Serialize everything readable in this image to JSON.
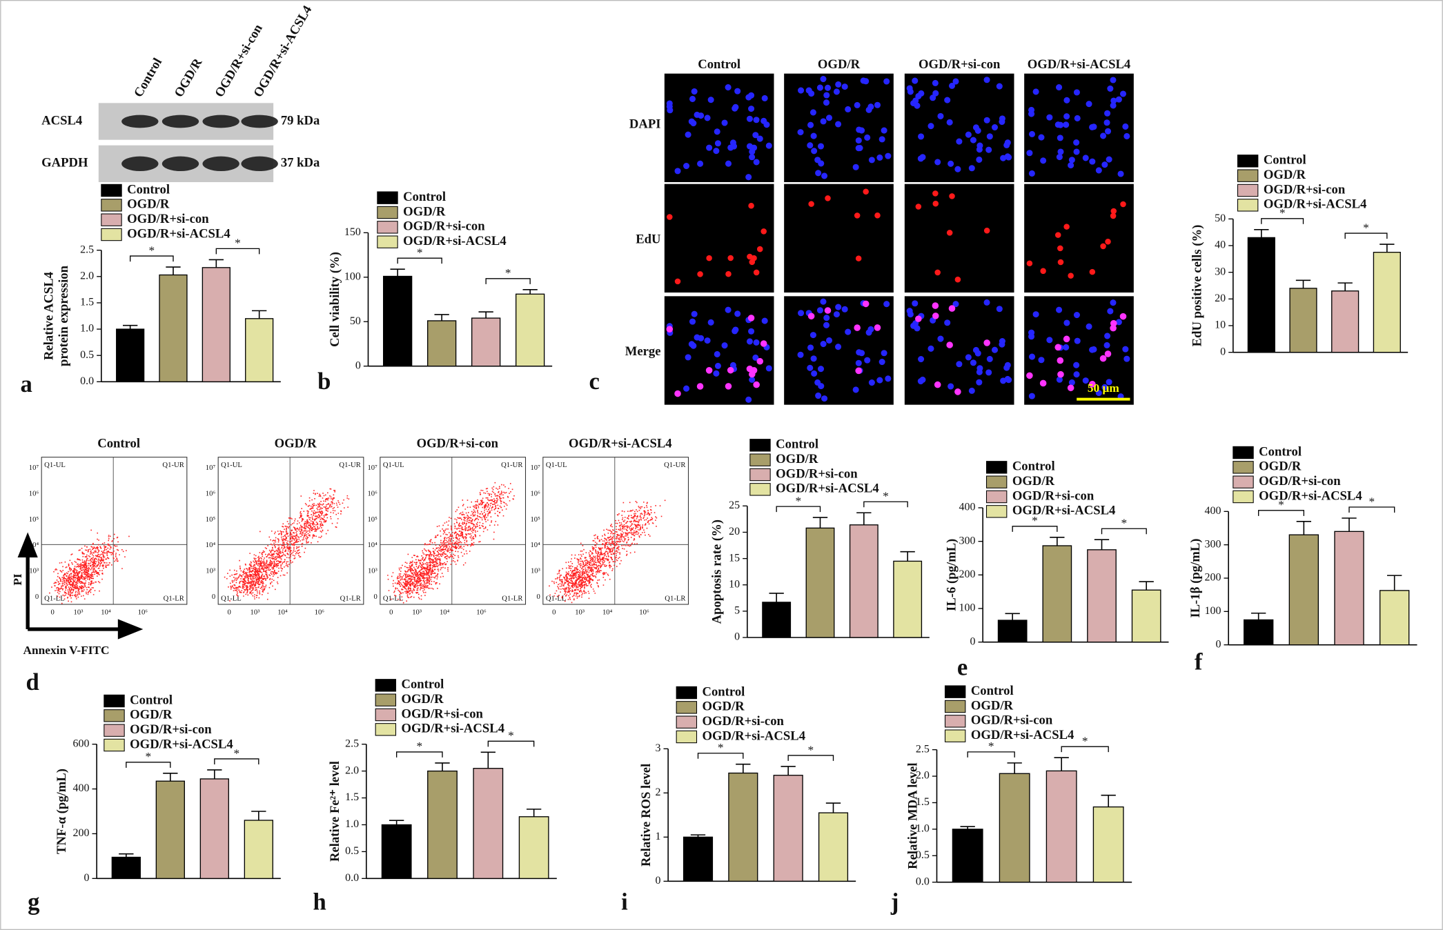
{
  "chart_data": [
    {
      "type": "bar",
      "panel": "a",
      "y_label": [
        "Relative ACSL4",
        "protein expression"
      ],
      "ylim": [
        0,
        2.5
      ],
      "yticks": [
        {
          "value": 0,
          "label": "0.0"
        },
        0.5,
        {
          "value": 1,
          "label": "1.0"
        },
        1.5,
        {
          "value": 2,
          "label": "2.0"
        },
        2.5
      ],
      "series": [
        {
          "name": "Control",
          "color": "#000000",
          "values": [
            1.0
          ],
          "errors": [
            0.07
          ]
        },
        {
          "name": "OGD/R",
          "color": "#a89e6a",
          "values": [
            2.03
          ],
          "errors": [
            0.15
          ]
        },
        {
          "name": "OGD/R+si-con",
          "color": "#d8aeae",
          "values": [
            2.17
          ],
          "errors": [
            0.15
          ]
        },
        {
          "name": "OGD/R+si-ACSL4",
          "color": "#e3e3a2",
          "values": [
            1.2
          ],
          "errors": [
            0.15
          ]
        }
      ],
      "annotations": [
        "*",
        "*"
      ]
    },
    {
      "type": "bar",
      "panel": "b",
      "y_label": [
        "Cell viability (%)"
      ],
      "ylim": [
        0,
        150
      ],
      "yticks": [
        0,
        50,
        100,
        150
      ],
      "series": [
        {
          "name": "Control",
          "color": "#000000",
          "values": [
            101
          ],
          "errors": [
            8
          ]
        },
        {
          "name": "OGD/R",
          "color": "#a89e6a",
          "values": [
            51
          ],
          "errors": [
            7
          ]
        },
        {
          "name": "OGD/R+si-con",
          "color": "#d8aeae",
          "values": [
            54
          ],
          "errors": [
            7
          ]
        },
        {
          "name": "OGD/R+si-ACSL4",
          "color": "#e3e3a2",
          "values": [
            81
          ],
          "errors": [
            5
          ]
        }
      ],
      "annotations": [
        "*",
        "*"
      ]
    },
    {
      "type": "bar",
      "panel": "c",
      "y_label": [
        "EdU positive cells (%)"
      ],
      "ylim": [
        0,
        50
      ],
      "yticks": [
        0,
        10,
        20,
        30,
        40,
        50
      ],
      "series": [
        {
          "name": "Control",
          "color": "#000000",
          "values": [
            43
          ],
          "errors": [
            3
          ]
        },
        {
          "name": "OGD/R",
          "color": "#a89e6a",
          "values": [
            24
          ],
          "errors": [
            3
          ]
        },
        {
          "name": "OGD/R+si-con",
          "color": "#d8aeae",
          "values": [
            23
          ],
          "errors": [
            3
          ]
        },
        {
          "name": "OGD/R+si-ACSL4",
          "color": "#e3e3a2",
          "values": [
            37.5
          ],
          "errors": [
            3
          ]
        }
      ],
      "annotations": [
        "*",
        "*"
      ]
    },
    {
      "type": "bar",
      "panel": "d",
      "y_label": [
        "Apoptosis rate (%)"
      ],
      "ylim": [
        0,
        25
      ],
      "yticks": [
        0,
        5,
        10,
        15,
        20,
        25
      ],
      "series": [
        {
          "name": "Control",
          "color": "#000000",
          "values": [
            6.7
          ],
          "errors": [
            1.7
          ]
        },
        {
          "name": "OGD/R",
          "color": "#a89e6a",
          "values": [
            20.8
          ],
          "errors": [
            2
          ]
        },
        {
          "name": "OGD/R+si-con",
          "color": "#d8aeae",
          "values": [
            21.4
          ],
          "errors": [
            2.3
          ]
        },
        {
          "name": "OGD/R+si-ACSL4",
          "color": "#e3e3a2",
          "values": [
            14.5
          ],
          "errors": [
            1.8
          ]
        }
      ],
      "annotations": [
        "*",
        "*"
      ]
    },
    {
      "type": "bar",
      "panel": "e",
      "y_label": [
        "IL-6 (pg/mL)"
      ],
      "ylim": [
        0,
        400
      ],
      "yticks": [
        0,
        100,
        200,
        300,
        400
      ],
      "series": [
        {
          "name": "Control",
          "color": "#000000",
          "values": [
            65
          ],
          "errors": [
            20
          ]
        },
        {
          "name": "OGD/R",
          "color": "#a89e6a",
          "values": [
            287
          ],
          "errors": [
            25
          ]
        },
        {
          "name": "OGD/R+si-con",
          "color": "#d8aeae",
          "values": [
            275
          ],
          "errors": [
            30
          ]
        },
        {
          "name": "OGD/R+si-ACSL4",
          "color": "#e3e3a2",
          "values": [
            155
          ],
          "errors": [
            25
          ]
        }
      ],
      "annotations": [
        "*",
        "*"
      ]
    },
    {
      "type": "bar",
      "panel": "f",
      "y_label": [
        "IL-1β (pg/mL)"
      ],
      "ylim": [
        0,
        400
      ],
      "yticks": [
        0,
        100,
        200,
        300,
        400
      ],
      "series": [
        {
          "name": "Control",
          "color": "#000000",
          "values": [
            75
          ],
          "errors": [
            20
          ]
        },
        {
          "name": "OGD/R",
          "color": "#a89e6a",
          "values": [
            330
          ],
          "errors": [
            40
          ]
        },
        {
          "name": "OGD/R+si-con",
          "color": "#d8aeae",
          "values": [
            340
          ],
          "errors": [
            40
          ]
        },
        {
          "name": "OGD/R+si-ACSL4",
          "color": "#e3e3a2",
          "values": [
            163
          ],
          "errors": [
            45
          ]
        }
      ],
      "annotations": [
        "*",
        "*"
      ]
    },
    {
      "type": "bar",
      "panel": "g",
      "y_label": [
        "TNF-α (pg/mL)"
      ],
      "ylim": [
        0,
        600
      ],
      "yticks": [
        0,
        200,
        400,
        600
      ],
      "series": [
        {
          "name": "Control",
          "color": "#000000",
          "values": [
            95
          ],
          "errors": [
            15
          ]
        },
        {
          "name": "OGD/R",
          "color": "#a89e6a",
          "values": [
            435
          ],
          "errors": [
            35
          ]
        },
        {
          "name": "OGD/R+si-con",
          "color": "#d8aeae",
          "values": [
            445
          ],
          "errors": [
            40
          ]
        },
        {
          "name": "OGD/R+si-ACSL4",
          "color": "#e3e3a2",
          "values": [
            260
          ],
          "errors": [
            40
          ]
        }
      ],
      "annotations": [
        "*",
        "*"
      ]
    },
    {
      "type": "bar",
      "panel": "h",
      "y_label": [
        "Relative Fe²⁺ level"
      ],
      "ylim": [
        0,
        2.5
      ],
      "yticks": [
        {
          "value": 0,
          "label": "0.0"
        },
        0.5,
        {
          "value": 1,
          "label": "1.0"
        },
        1.5,
        {
          "value": 2,
          "label": "2.0"
        },
        2.5
      ],
      "series": [
        {
          "name": "Control",
          "color": "#000000",
          "values": [
            1.0
          ],
          "errors": [
            0.08
          ]
        },
        {
          "name": "OGD/R",
          "color": "#a89e6a",
          "values": [
            2.0
          ],
          "errors": [
            0.15
          ]
        },
        {
          "name": "OGD/R+si-con",
          "color": "#d8aeae",
          "values": [
            2.05
          ],
          "errors": [
            0.3
          ]
        },
        {
          "name": "OGD/R+si-ACSL4",
          "color": "#e3e3a2",
          "values": [
            1.15
          ],
          "errors": [
            0.14
          ]
        }
      ],
      "annotations": [
        "*",
        "*"
      ]
    },
    {
      "type": "bar",
      "panel": "i",
      "y_label": [
        "Relative ROS level"
      ],
      "ylim": [
        0,
        3
      ],
      "yticks": [
        0,
        1,
        2,
        3
      ],
      "series": [
        {
          "name": "Control",
          "color": "#000000",
          "values": [
            1.0
          ],
          "errors": [
            0.05
          ]
        },
        {
          "name": "OGD/R",
          "color": "#a89e6a",
          "values": [
            2.45
          ],
          "errors": [
            0.2
          ]
        },
        {
          "name": "OGD/R+si-con",
          "color": "#d8aeae",
          "values": [
            2.4
          ],
          "errors": [
            0.2
          ]
        },
        {
          "name": "OGD/R+si-ACSL4",
          "color": "#e3e3a2",
          "values": [
            1.55
          ],
          "errors": [
            0.22
          ]
        }
      ],
      "annotations": [
        "*",
        "*"
      ]
    },
    {
      "type": "bar",
      "panel": "j",
      "y_label": [
        "Relative MDA level"
      ],
      "ylim": [
        0,
        2.5
      ],
      "yticks": [
        {
          "value": 0,
          "label": "0.0"
        },
        0.5,
        {
          "value": 1,
          "label": "1.0"
        },
        1.5,
        {
          "value": 2,
          "label": "2.0"
        },
        2.5
      ],
      "series": [
        {
          "name": "Control",
          "color": "#000000",
          "values": [
            1.0
          ],
          "errors": [
            0.05
          ]
        },
        {
          "name": "OGD/R",
          "color": "#a89e6a",
          "values": [
            2.05
          ],
          "errors": [
            0.2
          ]
        },
        {
          "name": "OGD/R+si-con",
          "color": "#d8aeae",
          "values": [
            2.1
          ],
          "errors": [
            0.25
          ]
        },
        {
          "name": "OGD/R+si-ACSL4",
          "color": "#e3e3a2",
          "values": [
            1.42
          ],
          "errors": [
            0.22
          ]
        }
      ],
      "annotations": [
        "*",
        "*"
      ]
    }
  ],
  "western_blot": {
    "lanes": [
      "Control",
      "OGD/R",
      "OGD/R+si-con",
      "OGD/R+si-ACSL4"
    ],
    "rows": [
      {
        "protein": "ACSL4",
        "size": "79 kDa"
      },
      {
        "protein": "GAPDH",
        "size": "37 kDa"
      }
    ]
  },
  "microscopy": {
    "columns": [
      "Control",
      "OGD/R",
      "OGD/R+si-con",
      "OGD/R+si-ACSL4"
    ],
    "rows": [
      "DAPI",
      "EdU",
      "Merge"
    ],
    "scale_bar": "50 μm"
  },
  "flow_cytometry": {
    "titles": [
      "Control",
      "OGD/R",
      "OGD/R+si-con",
      "OGD/R+si-ACSL4"
    ],
    "quadrants": [
      "Q1-UL",
      "Q1-UR",
      "Q1-LL",
      "Q1-LR"
    ],
    "xtick_labels": [
      "0",
      "10³",
      "10⁴",
      "10⁶"
    ],
    "ytick_labels": [
      "10⁷",
      "10⁶",
      "10⁵",
      "10⁴",
      "10³",
      "0"
    ],
    "y_label": "PI",
    "x_label": "Annexin V-FITC"
  }
}
